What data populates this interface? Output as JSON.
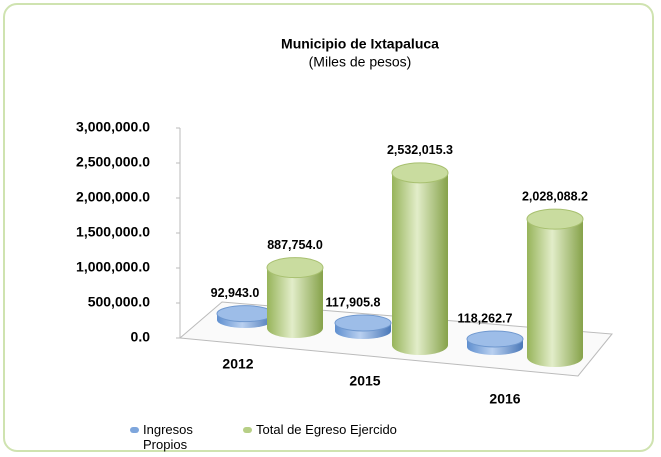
{
  "chart_data": {
    "type": "bar3d",
    "title": "Municipio de Ixtapaluca",
    "subtitle": "(Miles de pesos)",
    "categories": [
      "2012",
      "2015",
      "2016"
    ],
    "series": [
      {
        "name": "Ingresos Propios",
        "color": "#7ea6dc",
        "values": [
          92943.0,
          117905.8,
          118262.7
        ],
        "value_labels": [
          "92,943.0",
          "117,905.8",
          "118,262.7"
        ]
      },
      {
        "name": "Total de Egreso Ejercido",
        "color": "#b7cf86",
        "values": [
          887754.0,
          2532015.3,
          2028088.2
        ],
        "value_labels": [
          "887,754.0",
          "2,532,015.3",
          "2,028,088.2"
        ]
      }
    ],
    "ylim": [
      0,
      3000000
    ],
    "yticks": [
      {
        "value": 0,
        "label": "0.0"
      },
      {
        "value": 500000,
        "label": "500,000.0"
      },
      {
        "value": 1000000,
        "label": "1,000,000.0"
      },
      {
        "value": 1500000,
        "label": "1,500,000.0"
      },
      {
        "value": 2000000,
        "label": "2,000,000.0"
      },
      {
        "value": 2500000,
        "label": "2,500,000.0"
      },
      {
        "value": 3000000,
        "label": "3,000,000.0"
      }
    ]
  }
}
